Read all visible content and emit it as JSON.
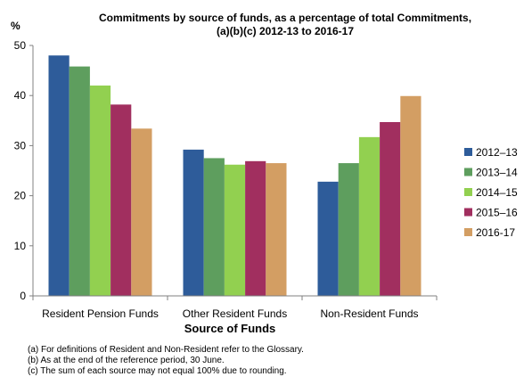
{
  "chart_data": {
    "type": "bar",
    "title": "Commitments by source of funds, as a percentage of total Commitments,",
    "subtitle": "(a)(b)(c)  2012-13  to 2016-17",
    "ylabel": "%",
    "xlabel": "Source of Funds",
    "ylim": [
      0,
      50
    ],
    "yticks": [
      0,
      10,
      20,
      30,
      40,
      50
    ],
    "categories": [
      "Resident Pension Funds",
      "Other Resident Funds",
      "Non-Resident Funds"
    ],
    "series": [
      {
        "name": "2012–13",
        "color": "#2E5C9A",
        "values": [
          48.0,
          29.2,
          22.8
        ]
      },
      {
        "name": "2013–14",
        "color": "#5E9E5E",
        "values": [
          45.8,
          27.5,
          26.5
        ]
      },
      {
        "name": "2014–15",
        "color": "#92D050",
        "values": [
          42.0,
          26.2,
          31.7
        ]
      },
      {
        "name": "2015–16",
        "color": "#A12F5F",
        "values": [
          38.2,
          26.9,
          34.7
        ]
      },
      {
        "name": "2016-17",
        "color": "#D39E63",
        "values": [
          33.4,
          26.5,
          39.9
        ]
      }
    ],
    "legend": "right",
    "grid": false
  },
  "notes": [
    "(a) For definitions of Resident and Non-Resident refer to the Glossary.",
    "(b) As at the end of the reference period, 30 June.",
    "(c) The sum of each source may not equal 100% due to rounding."
  ]
}
